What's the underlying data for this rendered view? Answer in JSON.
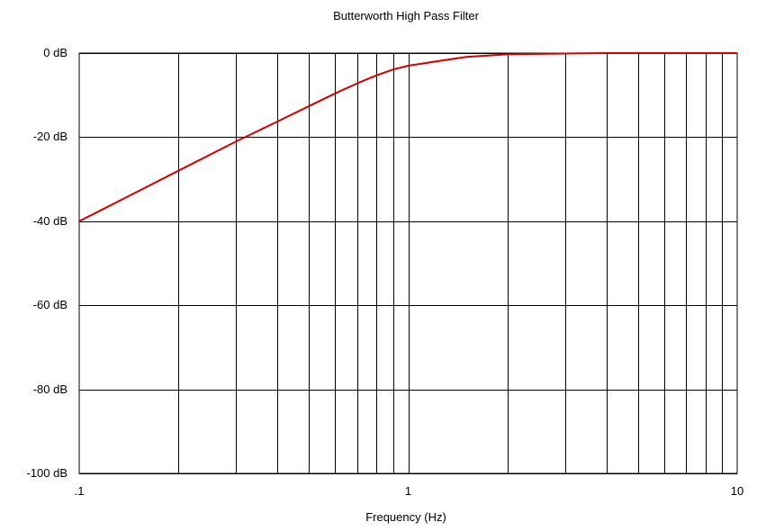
{
  "chart_data": {
    "type": "line",
    "title": "Butterworth High Pass Filter",
    "xlabel": "Frequency (Hz)",
    "ylabel": "",
    "x_scale": "log",
    "xlim": [
      0.1,
      10
    ],
    "ylim": [
      -100,
      0
    ],
    "x_ticks": [
      {
        "value": 0.1,
        "label": ".1"
      },
      {
        "value": 1,
        "label": "1"
      },
      {
        "value": 10,
        "label": "10"
      }
    ],
    "y_ticks": [
      {
        "value": 0,
        "label": "0 dB"
      },
      {
        "value": -20,
        "label": "-20 dB"
      },
      {
        "value": -40,
        "label": "-40 dB"
      },
      {
        "value": -60,
        "label": "-60 dB"
      },
      {
        "value": -80,
        "label": "-80 dB"
      },
      {
        "value": -100,
        "label": "-100 dB"
      }
    ],
    "grid": true,
    "series": [
      {
        "color": "#d40000",
        "x": [
          0.1,
          0.15,
          0.2,
          0.3,
          0.4,
          0.5,
          0.6,
          0.7,
          0.8,
          0.9,
          1,
          1.5,
          2,
          3,
          4,
          5,
          7,
          10
        ],
        "y": [
          -40,
          -33,
          -28,
          -21,
          -16.3,
          -12.6,
          -9.6,
          -7.2,
          -5.3,
          -3.9,
          -3.0,
          -0.9,
          -0.3,
          -0.1,
          0,
          0,
          0,
          0
        ]
      }
    ],
    "colors": {
      "background": "#ffffff",
      "grid": "#000000",
      "line": "#d40000"
    }
  }
}
